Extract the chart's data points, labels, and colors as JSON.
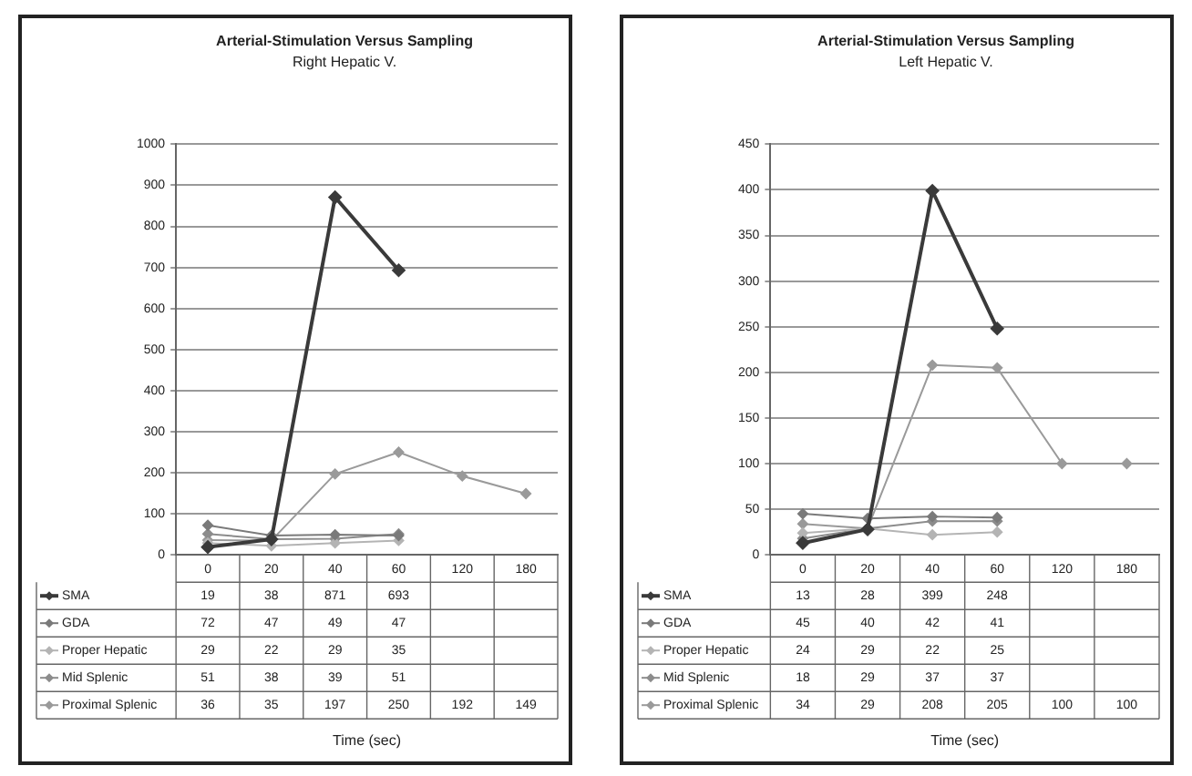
{
  "chart_data": [
    {
      "type": "line",
      "title": "Arterial-Stimulation Versus Sampling",
      "subtitle": "Right Hepatic V.",
      "xlabel": "Time (sec)",
      "categories": [
        "0",
        "20",
        "40",
        "60",
        "120",
        "180"
      ],
      "series": [
        {
          "name": "SMA",
          "color": "#3a3a3a",
          "values": [
            19,
            38,
            871,
            693,
            null,
            null
          ]
        },
        {
          "name": "GDA",
          "color": "#7a7a7a",
          "values": [
            72,
            47,
            49,
            47,
            null,
            null
          ]
        },
        {
          "name": "Proper Hepatic",
          "color": "#b4b4b4",
          "values": [
            29,
            22,
            29,
            35,
            null,
            null
          ]
        },
        {
          "name": "Mid Splenic",
          "color": "#8c8c8c",
          "values": [
            51,
            38,
            39,
            51,
            null,
            null
          ]
        },
        {
          "name": "Proximal Splenic",
          "color": "#9a9a9a",
          "values": [
            36,
            35,
            197,
            250,
            192,
            149
          ]
        }
      ],
      "ylim": [
        0,
        1000
      ],
      "yticks": [
        0,
        100,
        200,
        300,
        400,
        500,
        600,
        700,
        800,
        900,
        1000
      ],
      "grid": "y",
      "legend": "bottom",
      "data_labels": true,
      "marker": "diamond"
    },
    {
      "type": "line",
      "title": "Arterial-Stimulation Versus Sampling",
      "subtitle": "Left Hepatic V.",
      "xlabel": "Time (sec)",
      "categories": [
        "0",
        "20",
        "40",
        "60",
        "120",
        "180"
      ],
      "series": [
        {
          "name": "SMA",
          "color": "#3a3a3a",
          "values": [
            13,
            28,
            399,
            248,
            null,
            null
          ]
        },
        {
          "name": "GDA",
          "color": "#7a7a7a",
          "values": [
            45,
            40,
            42,
            41,
            null,
            null
          ]
        },
        {
          "name": "Proper Hepatic",
          "color": "#b4b4b4",
          "values": [
            24,
            29,
            22,
            25,
            null,
            null
          ]
        },
        {
          "name": "Mid Splenic",
          "color": "#8c8c8c",
          "values": [
            18,
            29,
            37,
            37,
            null,
            null
          ]
        },
        {
          "name": "Proximal Splenic",
          "color": "#9a9a9a",
          "values": [
            34,
            29,
            208,
            205,
            100,
            100
          ]
        }
      ],
      "ylim": [
        0,
        450
      ],
      "yticks": [
        0,
        50,
        100,
        150,
        200,
        250,
        300,
        350,
        400,
        450
      ],
      "grid": "y",
      "legend": "bottom",
      "data_labels": true,
      "marker": "diamond"
    }
  ]
}
